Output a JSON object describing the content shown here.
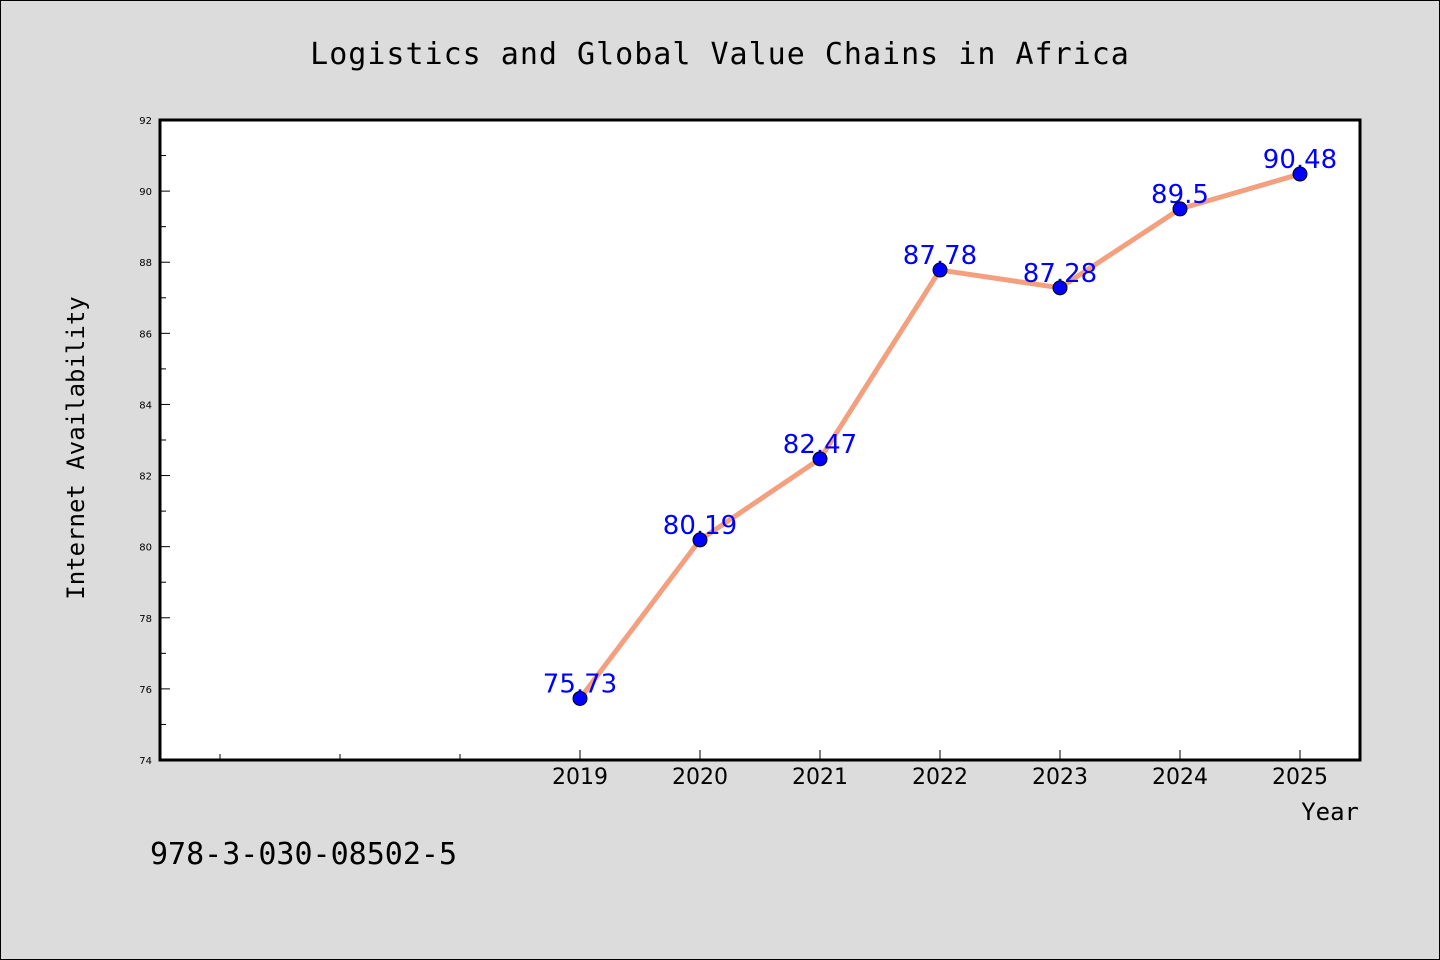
{
  "chart_data": {
    "type": "line",
    "title": "Logistics and Global Value Chains in Africa",
    "xlabel": "Year",
    "ylabel": "Internet Availability",
    "x": [
      "2019",
      "2020",
      "2021",
      "2022",
      "2023",
      "2024",
      "2025"
    ],
    "series": [
      {
        "values": [
          75.73,
          80.19,
          82.47,
          87.78,
          87.28,
          89.5,
          90.48
        ],
        "labels": [
          "75.73",
          "80.19",
          "82.47",
          "87.78",
          "87.28",
          "89.5",
          "90.48"
        ]
      }
    ],
    "ylim": [
      74,
      92
    ],
    "yticks": [
      "74",
      "76",
      "78",
      "80",
      "82",
      "84",
      "86",
      "88",
      "90",
      "92"
    ],
    "line_color": "#f4a07e",
    "marker_color": "#0000ff",
    "label_color": "#0000ff",
    "grid": false,
    "legend": "none"
  },
  "footer": {
    "isbn": "978-3-030-08502-5"
  },
  "colors": {
    "background": "#dcdcdc",
    "plot_background": "#ffffff"
  }
}
